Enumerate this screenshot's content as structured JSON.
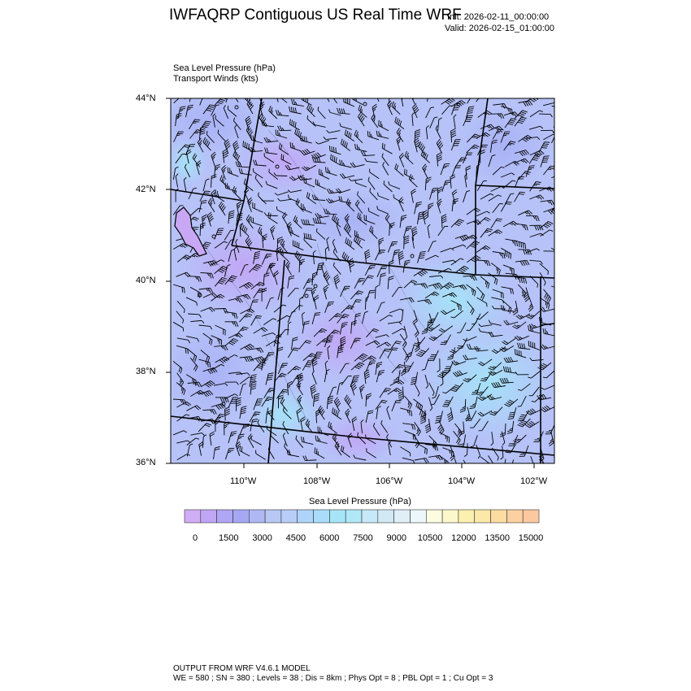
{
  "header": {
    "title": "IWFAQRP Contiguous US Real Time WRF",
    "init": "Init: 2026-02-11_00:00:00",
    "valid": "Valid: 2026-02-15_01:00:00"
  },
  "fields": {
    "line1": "Sea Level Pressure   (hPa)",
    "line2": "Transport Winds   (kts)"
  },
  "map": {
    "lat_ticks": [
      "44°N",
      "42°N",
      "40°N",
      "38°N",
      "36°N"
    ],
    "lon_ticks": [
      "110°W",
      "108°W",
      "106°W",
      "104°W",
      "102°W"
    ],
    "fill_colors": {
      "base": "#b6c2f8",
      "lavender": "#c4a8f6",
      "cyan": "#a6e2f8"
    }
  },
  "colorbar": {
    "title": "Sea Level Pressure  (hPa)",
    "labels": [
      "0",
      "1500",
      "3000",
      "4500",
      "6000",
      "7500",
      "9000",
      "10500",
      "12000",
      "13500",
      "15000"
    ],
    "colors": [
      "#d0aef6",
      "#c0a6f4",
      "#b0a6f6",
      "#a6a8f4",
      "#b0b8f4",
      "#b8c8f4",
      "#b8cef8",
      "#aed4fa",
      "#a8dcfa",
      "#a6e4f8",
      "#b0e8f8",
      "#c6e8f8",
      "#d2e8f4",
      "#e0eef8",
      "#ecf6fc",
      "#fcfce0",
      "#fcf8cc",
      "#fcf0b0",
      "#fce8a8",
      "#fcdca0",
      "#fcd0a0",
      "#fcc8a0",
      "#fcb8a0",
      "#fca8a0",
      "#f4a8a8",
      "#eca8a8",
      "#f0b4b4",
      "#f4c8c8",
      "#fce4e4"
    ]
  },
  "footer": {
    "line1": "OUTPUT FROM WRF V4.6.1 MODEL",
    "line2": "WE = 580 ; SN = 380 ; Levels = 38 ; Dis = 8km ; Phys Opt = 8 ; PBL Opt = 1 ; Cu Opt = 3"
  }
}
